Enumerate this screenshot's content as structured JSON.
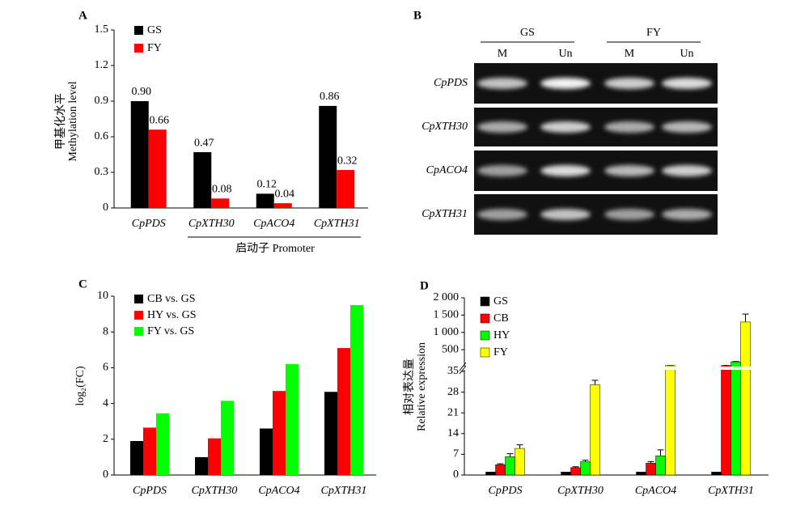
{
  "chart_data": [
    {
      "type": "bar",
      "label": "A",
      "y_label": [
        "甲基化水平",
        "Methylation level"
      ],
      "categories": [
        "CpPDS",
        "CpXTH30",
        "CpACO4",
        "CpXTH31"
      ],
      "series": [
        {
          "name": "GS",
          "color": "#000000",
          "values": [
            0.9,
            0.47,
            0.12,
            0.86
          ],
          "value_labels": [
            "0.90",
            "0.47",
            "0.12",
            "0.86"
          ]
        },
        {
          "name": "FY",
          "color": "#ff0000",
          "values": [
            0.66,
            0.08,
            0.04,
            0.32
          ],
          "value_labels": [
            "0.66",
            "0.08",
            "0.04",
            "0.32"
          ]
        }
      ],
      "ylim": [
        0,
        1.5
      ],
      "yticks": [
        0,
        0.3,
        0.6,
        0.9,
        1.2,
        1.5
      ],
      "legend": "upper left",
      "annotation": "启动子 Promoter"
    },
    {
      "type": "bar",
      "label": "C",
      "y_label": [
        "log₂(FC)"
      ],
      "categories": [
        "CpPDS",
        "CpXTH30",
        "CpACO4",
        "CpXTH31"
      ],
      "series": [
        {
          "name": "CB vs. GS",
          "color": "#000000",
          "values": [
            1.9,
            1.0,
            2.6,
            4.65
          ]
        },
        {
          "name": "HY vs. GS",
          "color": "#ff0000",
          "values": [
            2.65,
            2.05,
            4.7,
            7.1
          ]
        },
        {
          "name": "FY vs. GS",
          "color": "#00ff00",
          "values": [
            3.45,
            4.15,
            6.2,
            9.5
          ]
        }
      ],
      "ylim": [
        0,
        10
      ],
      "yticks": [
        0,
        2,
        4,
        6,
        8,
        10
      ],
      "legend": "upper left"
    },
    {
      "type": "bar",
      "label": "D",
      "y_label": [
        "相对表达量",
        "Relative expression"
      ],
      "categories": [
        "CpPDS",
        "CpXTH30",
        "CpACO4",
        "CpXTH31"
      ],
      "series": [
        {
          "name": "GS",
          "color": "#000000",
          "values": [
            1,
            1,
            1,
            1
          ]
        },
        {
          "name": "CB",
          "color": "#ff0000",
          "values": [
            3.5,
            2.5,
            4,
            40
          ],
          "errors": [
            0.3,
            0.3,
            0.5,
            2
          ]
        },
        {
          "name": "HY",
          "color": "#00ff00",
          "values": [
            6.2,
            4.5,
            6.5,
            150
          ],
          "errors": [
            1,
            0.5,
            2,
            8
          ]
        },
        {
          "name": "FY",
          "color": "#ffff00",
          "values": [
            9,
            30.5,
            40,
            1300
          ],
          "errors": [
            1.2,
            1.5,
            1,
            230
          ]
        }
      ],
      "broken_axis": [
        {
          "ylim": [
            0,
            35
          ],
          "yticks": [
            0,
            7,
            14,
            21,
            28,
            35
          ]
        },
        {
          "ylim": [
            35,
            2000
          ],
          "yticks": [
            500,
            {
              "value": 1000,
              "label": "1 000"
            },
            {
              "value": 1500,
              "label": "1 500"
            },
            {
              "value": 2000,
              "label": "2 000"
            }
          ]
        }
      ],
      "legend": "upper left"
    }
  ],
  "gel": {
    "label": "B",
    "groups": [
      {
        "name": "GS",
        "lanes": [
          "M",
          "Un"
        ]
      },
      {
        "name": "FY",
        "lanes": [
          "M",
          "Un"
        ]
      }
    ],
    "rows": [
      "CpPDS",
      "CpXTH30",
      "CpACO4",
      "CpXTH31"
    ]
  }
}
